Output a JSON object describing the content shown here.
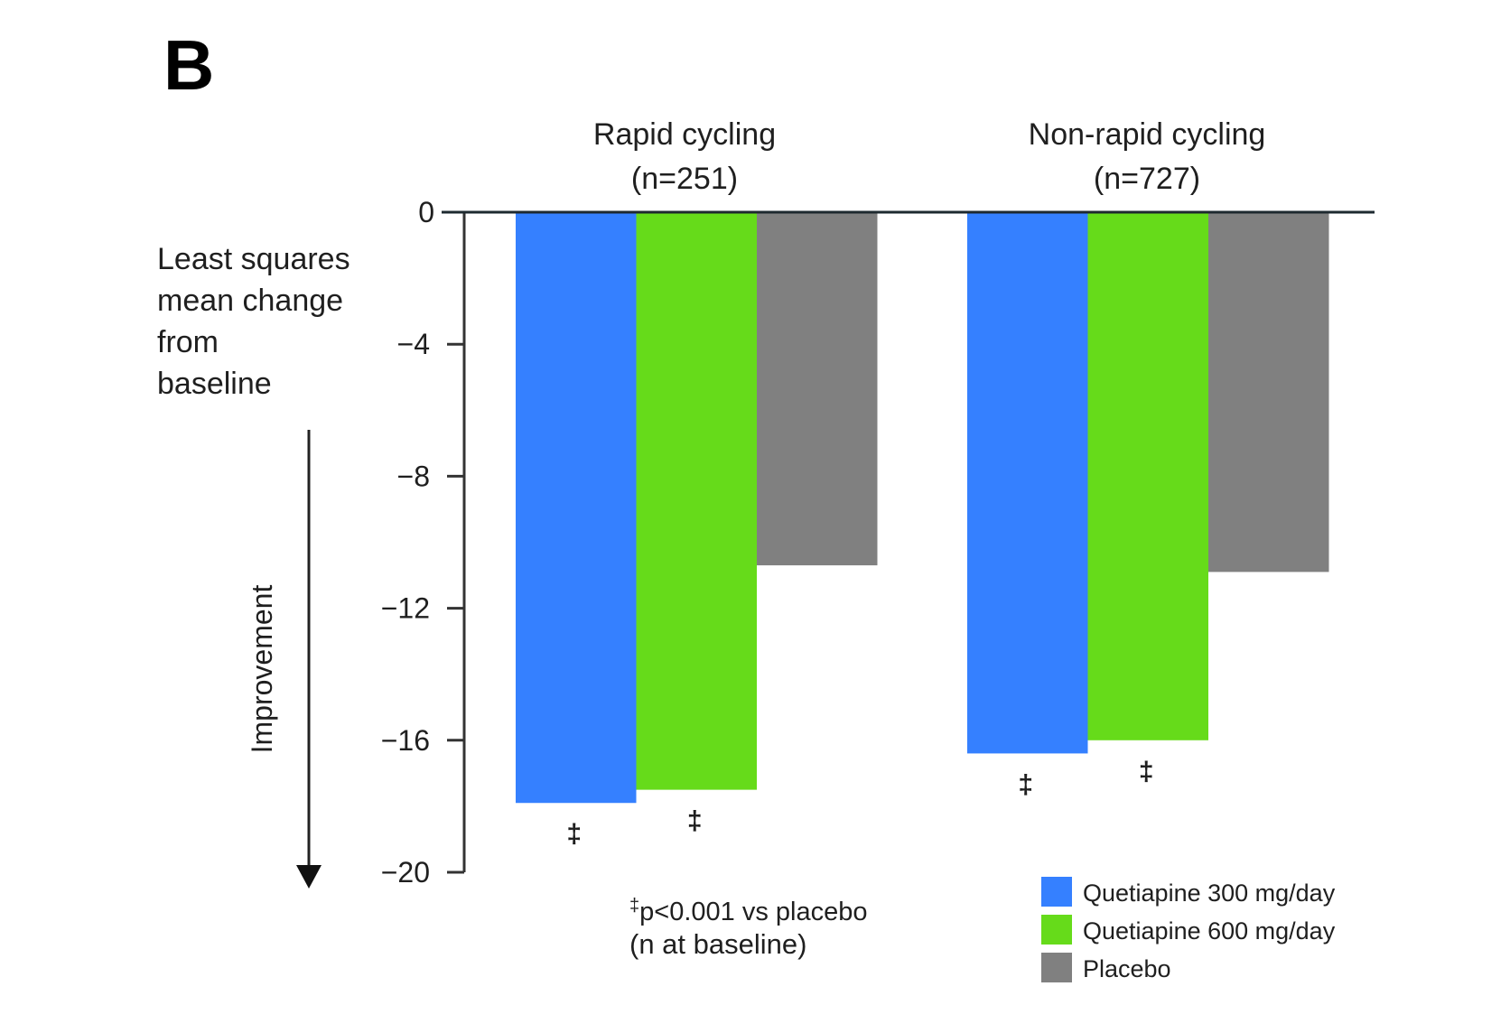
{
  "panel_label": "B",
  "chart_data": {
    "type": "bar",
    "title": "",
    "categories": [
      {
        "name": "Rapid cycling",
        "n_label": "(n=251)"
      },
      {
        "name": "Non-rapid cycling",
        "n_label": "(n=727)"
      }
    ],
    "series": [
      {
        "name": "Quetiapine 300 mg/day",
        "color": "#3580ff",
        "values": [
          -17.9,
          -16.4
        ],
        "markers": [
          "‡",
          "‡"
        ]
      },
      {
        "name": "Quetiapine 600 mg/day",
        "color": "#66db1a",
        "values": [
          -17.5,
          -16.0
        ],
        "markers": [
          "‡",
          "‡"
        ]
      },
      {
        "name": "Placebo",
        "color": "#808080",
        "values": [
          -10.7,
          -10.9
        ],
        "markers": [
          "",
          ""
        ]
      }
    ],
    "ylabel_lines": [
      "Least squares",
      "mean change",
      "from",
      "baseline"
    ],
    "yticks": [
      0,
      -4,
      -8,
      -12,
      -16,
      -20
    ],
    "ytick_labels": [
      "0",
      "−4",
      "−8",
      "−12",
      "−16",
      "−20"
    ],
    "ylim": [
      -20,
      0
    ],
    "arrow_label": "Improvement",
    "footnote_lines": [
      "‡p<0.001 vs placebo",
      "(n at baseline)"
    ],
    "legend_position": "bottom-right",
    "grid": false
  }
}
